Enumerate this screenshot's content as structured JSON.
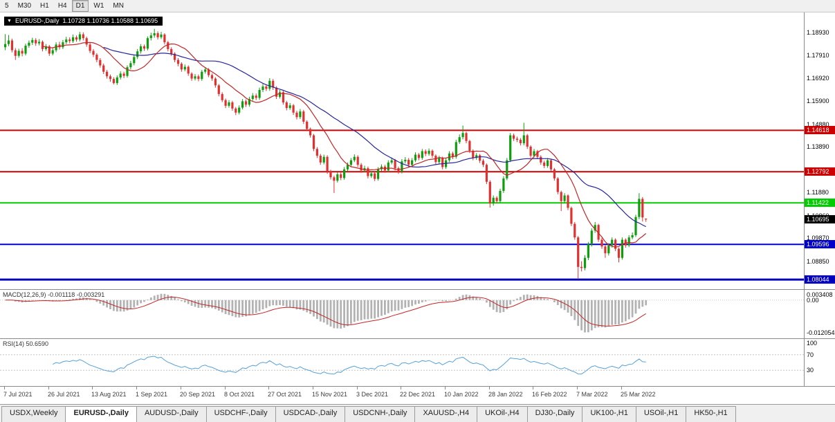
{
  "toolbar": {
    "timeframes": [
      "5",
      "M30",
      "H1",
      "H4",
      "D1",
      "W1",
      "MN"
    ],
    "active": "D1"
  },
  "chart": {
    "title_symbol": "EURUSD-,Daily",
    "title_ohlc": "1.10728 1.10736 1.10588 1.10695",
    "collapse_icon": "▼"
  },
  "chart_data": {
    "type": "candlestick",
    "symbol": "EURUSD-",
    "timeframe": "Daily",
    "title": "EURUSD-,Daily 1.10728 1.10736 1.10588 1.10695",
    "y_range": [
      1.0765,
      1.196
    ],
    "label_every": 13,
    "x_labels": [
      "7 Jul 2021",
      "26 Jul 2021",
      "13 Aug 2021",
      "1 Sep 2021",
      "20 Sep 2021",
      "8 Oct 2021",
      "27 Oct 2021",
      "15 Nov 2021",
      "3 Dec 2021",
      "22 Dec 2021",
      "10 Jan 2022",
      "28 Jan 2022",
      "16 Feb 2022",
      "7 Mar 2022",
      "25 Mar 2022"
    ],
    "price_axis_labels": [
      "1.18930",
      "1.17910",
      "1.16920",
      "1.15900",
      "1.14880",
      "1.13890",
      "1.12860",
      "1.11880",
      "1.10860",
      "1.09870",
      "1.08850"
    ],
    "colors": {
      "up": "#0f9d0f",
      "down": "#e03030",
      "ma_fast": "#c22626",
      "ma_slow": "#26269b"
    },
    "overlays": [
      {
        "type": "sma",
        "period": 30,
        "color": "#26269b"
      },
      {
        "type": "sma",
        "period": 12,
        "color": "#c22626"
      }
    ],
    "hlines": [
      {
        "value": 1.14618,
        "label": "1.14618",
        "color": "#cc0000",
        "width": 2
      },
      {
        "value": 1.12792,
        "label": "1.12792",
        "color": "#cc0000",
        "width": 2
      },
      {
        "value": 1.11422,
        "label": "1.11422",
        "color": "#00cc00",
        "width": 2
      },
      {
        "value": 1.09596,
        "label": "1.09596",
        "color": "#0000cc",
        "width": 2
      },
      {
        "value": 1.08044,
        "label": "1.08044",
        "color": "#0000bb",
        "width": 3
      }
    ],
    "current_price": {
      "value": 1.10695,
      "label": "1.10695",
      "color": "#000000"
    },
    "indicators": [
      {
        "name": "MACD",
        "label": "MACD(12,26,9) -0.001118 -0.003291",
        "params": [
          12,
          26,
          9
        ],
        "values_text": [
          "-0.001118",
          "-0.003291"
        ],
        "axis_labels": [
          "0.003408",
          "0.00",
          "-0.012054"
        ],
        "histogram_color": "#b2b2b2",
        "signal_color": "#c22626"
      },
      {
        "name": "RSI",
        "label": "RSI(14) 50.6590",
        "params": [
          14
        ],
        "value_text": "50.6590",
        "axis_labels": [
          "100",
          "70",
          "30"
        ],
        "levels": [
          70,
          30
        ],
        "line_color": "#55a1d6"
      }
    ],
    "candles": [
      [
        1.1828,
        1.1886,
        1.1815,
        1.1842
      ],
      [
        1.1842,
        1.1882,
        1.1833,
        1.1858
      ],
      [
        1.1858,
        1.1866,
        1.1805,
        1.1815
      ],
      [
        1.1815,
        1.1824,
        1.1772,
        1.179
      ],
      [
        1.179,
        1.1822,
        1.1782,
        1.1812
      ],
      [
        1.1812,
        1.1824,
        1.1788,
        1.18
      ],
      [
        1.18,
        1.1844,
        1.1792,
        1.1835
      ],
      [
        1.1835,
        1.1858,
        1.1826,
        1.1848
      ],
      [
        1.1848,
        1.187,
        1.1838,
        1.186
      ],
      [
        1.186,
        1.1868,
        1.1834,
        1.1845
      ],
      [
        1.1845,
        1.1864,
        1.1836,
        1.1852
      ],
      [
        1.1852,
        1.1858,
        1.181,
        1.182
      ],
      [
        1.182,
        1.1842,
        1.1812,
        1.1832
      ],
      [
        1.1832,
        1.1838,
        1.179,
        1.18
      ],
      [
        1.18,
        1.1826,
        1.1792,
        1.1815
      ],
      [
        1.1815,
        1.185,
        1.1806,
        1.184
      ],
      [
        1.184,
        1.1852,
        1.1818,
        1.1828
      ],
      [
        1.1828,
        1.186,
        1.182,
        1.185
      ],
      [
        1.185,
        1.1874,
        1.1842,
        1.1862
      ],
      [
        1.1862,
        1.1872,
        1.1845,
        1.1855
      ],
      [
        1.1855,
        1.1884,
        1.1847,
        1.1872
      ],
      [
        1.1872,
        1.188,
        1.1852,
        1.1862
      ],
      [
        1.1862,
        1.1896,
        1.1854,
        1.1885
      ],
      [
        1.1885,
        1.1894,
        1.1858,
        1.1868
      ],
      [
        1.1868,
        1.1875,
        1.183,
        1.184
      ],
      [
        1.184,
        1.1848,
        1.1802,
        1.1812
      ],
      [
        1.1812,
        1.182,
        1.1785,
        1.1795
      ],
      [
        1.1795,
        1.1802,
        1.1762,
        1.1772
      ],
      [
        1.1772,
        1.178,
        1.1738,
        1.1748
      ],
      [
        1.1748,
        1.1756,
        1.171,
        1.172
      ],
      [
        1.172,
        1.1728,
        1.169,
        1.17
      ],
      [
        1.17,
        1.1708,
        1.1676,
        1.1688
      ],
      [
        1.1688,
        1.1696,
        1.1664,
        1.167
      ],
      [
        1.167,
        1.1704,
        1.1662,
        1.1695
      ],
      [
        1.1695,
        1.1722,
        1.1686,
        1.1712
      ],
      [
        1.1712,
        1.172,
        1.1692,
        1.1702
      ],
      [
        1.1702,
        1.1748,
        1.1694,
        1.174
      ],
      [
        1.174,
        1.1768,
        1.173,
        1.1758
      ],
      [
        1.1758,
        1.1794,
        1.1748,
        1.1785
      ],
      [
        1.1785,
        1.182,
        1.1776,
        1.181
      ],
      [
        1.181,
        1.1842,
        1.18,
        1.1832
      ],
      [
        1.1832,
        1.184,
        1.1812,
        1.1822
      ],
      [
        1.1822,
        1.1876,
        1.1814,
        1.1868
      ],
      [
        1.1868,
        1.1892,
        1.1858,
        1.188
      ],
      [
        1.188,
        1.1909,
        1.187,
        1.189
      ],
      [
        1.189,
        1.1898,
        1.1862,
        1.1872
      ],
      [
        1.1872,
        1.1896,
        1.1864,
        1.1884
      ],
      [
        1.1884,
        1.189,
        1.184,
        1.185
      ],
      [
        1.185,
        1.1856,
        1.181,
        1.182
      ],
      [
        1.182,
        1.1828,
        1.179,
        1.18
      ],
      [
        1.18,
        1.1806,
        1.1762,
        1.1772
      ],
      [
        1.1772,
        1.178,
        1.1744,
        1.1755
      ],
      [
        1.1755,
        1.1762,
        1.172,
        1.173
      ],
      [
        1.173,
        1.1752,
        1.1722,
        1.1742
      ],
      [
        1.1742,
        1.1748,
        1.1702,
        1.1712
      ],
      [
        1.1712,
        1.1718,
        1.168,
        1.169
      ],
      [
        1.169,
        1.171,
        1.1682,
        1.17
      ],
      [
        1.17,
        1.1708,
        1.1678,
        1.1688
      ],
      [
        1.1688,
        1.1728,
        1.168,
        1.172
      ],
      [
        1.172,
        1.174,
        1.1712,
        1.173
      ],
      [
        1.173,
        1.1736,
        1.1696,
        1.1705
      ],
      [
        1.1705,
        1.1712,
        1.168,
        1.169
      ],
      [
        1.169,
        1.1696,
        1.165,
        1.166
      ],
      [
        1.166,
        1.1666,
        1.1612,
        1.1622
      ],
      [
        1.1622,
        1.163,
        1.1586,
        1.1595
      ],
      [
        1.1595,
        1.1602,
        1.156,
        1.157
      ],
      [
        1.157,
        1.1595,
        1.1562,
        1.1585
      ],
      [
        1.1585,
        1.1592,
        1.1548,
        1.1558
      ],
      [
        1.1558,
        1.1565,
        1.1529,
        1.154
      ],
      [
        1.154,
        1.1572,
        1.1532,
        1.1562
      ],
      [
        1.1562,
        1.16,
        1.1554,
        1.159
      ],
      [
        1.159,
        1.1598,
        1.1565,
        1.1575
      ],
      [
        1.1575,
        1.161,
        1.1566,
        1.16
      ],
      [
        1.16,
        1.1626,
        1.1592,
        1.1615
      ],
      [
        1.1615,
        1.1624,
        1.1595,
        1.1605
      ],
      [
        1.1605,
        1.165,
        1.1596,
        1.164
      ],
      [
        1.164,
        1.1666,
        1.163,
        1.1655
      ],
      [
        1.1655,
        1.1664,
        1.1635,
        1.1645
      ],
      [
        1.1645,
        1.1692,
        1.1636,
        1.168
      ],
      [
        1.168,
        1.1688,
        1.164,
        1.165
      ],
      [
        1.165,
        1.1656,
        1.16,
        1.161
      ],
      [
        1.161,
        1.164,
        1.1602,
        1.163
      ],
      [
        1.163,
        1.1636,
        1.1575,
        1.1585
      ],
      [
        1.1585,
        1.1592,
        1.155,
        1.156
      ],
      [
        1.156,
        1.1582,
        1.1552,
        1.1572
      ],
      [
        1.1572,
        1.1578,
        1.153,
        1.154
      ],
      [
        1.154,
        1.1548,
        1.151,
        1.152
      ],
      [
        1.152,
        1.1556,
        1.1512,
        1.1545
      ],
      [
        1.1545,
        1.1552,
        1.149,
        1.15
      ],
      [
        1.15,
        1.1506,
        1.1458,
        1.1468
      ],
      [
        1.1468,
        1.1474,
        1.143,
        1.144
      ],
      [
        1.144,
        1.1446,
        1.137,
        1.138
      ],
      [
        1.138,
        1.1388,
        1.134,
        1.135
      ],
      [
        1.135,
        1.1358,
        1.131,
        1.132
      ],
      [
        1.132,
        1.1355,
        1.1312,
        1.1345
      ],
      [
        1.1345,
        1.1352,
        1.127,
        1.128
      ],
      [
        1.128,
        1.1288,
        1.1245,
        1.1255
      ],
      [
        1.1255,
        1.1262,
        1.1186,
        1.124
      ],
      [
        1.124,
        1.1278,
        1.1232,
        1.1268
      ],
      [
        1.1268,
        1.1276,
        1.1242,
        1.1252
      ],
      [
        1.1252,
        1.13,
        1.1244,
        1.129
      ],
      [
        1.129,
        1.132,
        1.1282,
        1.131
      ],
      [
        1.131,
        1.134,
        1.1302,
        1.133
      ],
      [
        1.133,
        1.1356,
        1.1322,
        1.1345
      ],
      [
        1.1345,
        1.1352,
        1.13,
        1.131
      ],
      [
        1.131,
        1.1318,
        1.1275,
        1.1285
      ],
      [
        1.1285,
        1.1306,
        1.1277,
        1.1295
      ],
      [
        1.1295,
        1.1302,
        1.125,
        1.126
      ],
      [
        1.126,
        1.1282,
        1.1252,
        1.1272
      ],
      [
        1.1272,
        1.128,
        1.1238,
        1.1248
      ],
      [
        1.1248,
        1.13,
        1.124,
        1.129
      ],
      [
        1.129,
        1.1312,
        1.1282,
        1.1302
      ],
      [
        1.1302,
        1.131,
        1.1275,
        1.1285
      ],
      [
        1.1285,
        1.133,
        1.1277,
        1.132
      ],
      [
        1.132,
        1.1342,
        1.1312,
        1.133
      ],
      [
        1.133,
        1.1336,
        1.1285,
        1.1295
      ],
      [
        1.1295,
        1.1302,
        1.127,
        1.128
      ],
      [
        1.128,
        1.1335,
        1.1272,
        1.1325
      ],
      [
        1.1325,
        1.1344,
        1.1316,
        1.1332
      ],
      [
        1.1332,
        1.134,
        1.13,
        1.131
      ],
      [
        1.131,
        1.134,
        1.1302,
        1.133
      ],
      [
        1.133,
        1.1365,
        1.1322,
        1.1355
      ],
      [
        1.1355,
        1.1362,
        1.133,
        1.134
      ],
      [
        1.134,
        1.138,
        1.1332,
        1.137
      ],
      [
        1.137,
        1.1378,
        1.1348,
        1.1358
      ],
      [
        1.1358,
        1.1382,
        1.135,
        1.1372
      ],
      [
        1.1372,
        1.1378,
        1.134,
        1.135
      ],
      [
        1.135,
        1.1356,
        1.1312,
        1.1322
      ],
      [
        1.1322,
        1.135,
        1.1314,
        1.134
      ],
      [
        1.134,
        1.1346,
        1.129,
        1.13
      ],
      [
        1.13,
        1.134,
        1.1292,
        1.133
      ],
      [
        1.133,
        1.137,
        1.1322,
        1.136
      ],
      [
        1.136,
        1.1368,
        1.1335,
        1.1345
      ],
      [
        1.1345,
        1.142,
        1.1337,
        1.141
      ],
      [
        1.141,
        1.1444,
        1.1402,
        1.1432
      ],
      [
        1.1432,
        1.1483,
        1.1422,
        1.145
      ],
      [
        1.145,
        1.1456,
        1.1405,
        1.1415
      ],
      [
        1.1415,
        1.142,
        1.1362,
        1.1372
      ],
      [
        1.1372,
        1.1378,
        1.133,
        1.134
      ],
      [
        1.134,
        1.1362,
        1.1332,
        1.1352
      ],
      [
        1.1352,
        1.1358,
        1.1318,
        1.1328
      ],
      [
        1.1328,
        1.1336,
        1.13,
        1.131
      ],
      [
        1.131,
        1.1316,
        1.1225,
        1.1235
      ],
      [
        1.1235,
        1.1242,
        1.1121,
        1.114
      ],
      [
        1.114,
        1.1175,
        1.113,
        1.1165
      ],
      [
        1.1165,
        1.1172,
        1.114,
        1.115
      ],
      [
        1.115,
        1.1205,
        1.1142,
        1.1195
      ],
      [
        1.1195,
        1.126,
        1.1186,
        1.125
      ],
      [
        1.125,
        1.134,
        1.1242,
        1.133
      ],
      [
        1.133,
        1.145,
        1.1322,
        1.144
      ],
      [
        1.144,
        1.1448,
        1.1415,
        1.1425
      ],
      [
        1.1425,
        1.1434,
        1.141,
        1.142
      ],
      [
        1.142,
        1.1428,
        1.1395,
        1.1405
      ],
      [
        1.1405,
        1.1495,
        1.1396,
        1.144
      ],
      [
        1.144,
        1.1446,
        1.138,
        1.139
      ],
      [
        1.139,
        1.1396,
        1.134,
        1.135
      ],
      [
        1.135,
        1.138,
        1.1342,
        1.137
      ],
      [
        1.137,
        1.1376,
        1.1335,
        1.1345
      ],
      [
        1.1345,
        1.1352,
        1.131,
        1.132
      ],
      [
        1.132,
        1.1328,
        1.1295,
        1.1305
      ],
      [
        1.1305,
        1.134,
        1.1297,
        1.133
      ],
      [
        1.133,
        1.1336,
        1.128,
        1.129
      ],
      [
        1.129,
        1.1296,
        1.124,
        1.125
      ],
      [
        1.125,
        1.1256,
        1.118,
        1.119
      ],
      [
        1.119,
        1.1196,
        1.1106,
        1.115
      ],
      [
        1.115,
        1.1185,
        1.114,
        1.1175
      ],
      [
        1.1175,
        1.118,
        1.111,
        1.112
      ],
      [
        1.112,
        1.1126,
        1.104,
        1.105
      ],
      [
        1.105,
        1.1058,
        1.098,
        1.099
      ],
      [
        1.099,
        1.0996,
        1.0806,
        1.086
      ],
      [
        1.086,
        1.0885,
        1.084,
        1.0855
      ],
      [
        1.0855,
        1.0912,
        1.0845,
        1.09
      ],
      [
        1.09,
        1.097,
        1.089,
        1.096
      ],
      [
        1.096,
        1.103,
        1.095,
        1.102
      ],
      [
        1.102,
        1.1058,
        1.101,
        1.1045
      ],
      [
        1.1045,
        1.105,
        1.097,
        1.098
      ],
      [
        1.098,
        1.0988,
        1.094,
        1.095
      ],
      [
        1.095,
        1.0958,
        1.09,
        1.092
      ],
      [
        1.092,
        1.0965,
        1.091,
        1.0955
      ],
      [
        1.0955,
        1.099,
        1.0945,
        1.098
      ],
      [
        1.098,
        1.0986,
        1.093,
        1.094
      ],
      [
        1.094,
        1.0946,
        1.088,
        1.09
      ],
      [
        1.09,
        1.099,
        1.0892,
        1.098
      ],
      [
        1.098,
        1.0986,
        1.0945,
        1.0955
      ],
      [
        1.0955,
        1.1,
        1.0947,
        1.099
      ],
      [
        1.099,
        1.1012,
        1.0982,
        1.1
      ],
      [
        1.1,
        1.109,
        1.0992,
        1.108
      ],
      [
        1.108,
        1.1185,
        1.107,
        1.116
      ],
      [
        1.116,
        1.1168,
        1.106,
        1.1078
      ],
      [
        1.10728,
        1.10736,
        1.10588,
        1.10695
      ]
    ]
  },
  "bottom_tabs": {
    "active_index": 1,
    "tabs": [
      "USDX,Weekly",
      "EURUSD-,Daily",
      "AUDUSD-,Daily",
      "USDCHF-,Daily",
      "USDCAD-,Daily",
      "USDCNH-,Daily",
      "XAUUSD-,H4",
      "UKOil-,H4",
      "DJ30-,Daily",
      "UK100-,H1",
      "USOil-,H1",
      "HK50-,H1"
    ]
  }
}
